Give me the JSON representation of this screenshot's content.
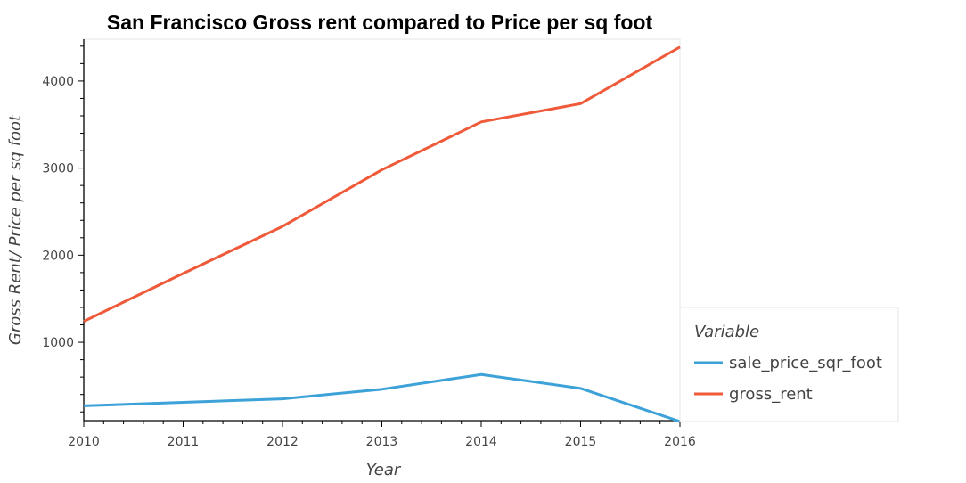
{
  "chart_data": {
    "type": "line",
    "title": "San Francisco Gross rent compared to Price per sq foot",
    "xlabel": "Year",
    "ylabel": "Gross Rent/ Price per sq foot",
    "x": [
      2010,
      2011,
      2012,
      2013,
      2014,
      2015,
      2016
    ],
    "xlim": [
      2010,
      2016
    ],
    "ylim": [
      100,
      4480
    ],
    "x_ticks": [
      2010,
      2011,
      2012,
      2013,
      2014,
      2015,
      2016
    ],
    "y_ticks": [
      1000,
      2000,
      3000,
      4000
    ],
    "grid": false,
    "legend": {
      "title": "Variable",
      "placement": "bottom-right-outside"
    },
    "series": [
      {
        "name": "sale_price_sqr_foot",
        "color": "#3ca2d8",
        "values": [
          270,
          310,
          350,
          460,
          630,
          470,
          90
        ]
      },
      {
        "name": "gross_rent",
        "color": "#ef5a3a",
        "values": [
          1240,
          1790,
          2330,
          2980,
          3530,
          3740,
          4390
        ]
      }
    ]
  }
}
